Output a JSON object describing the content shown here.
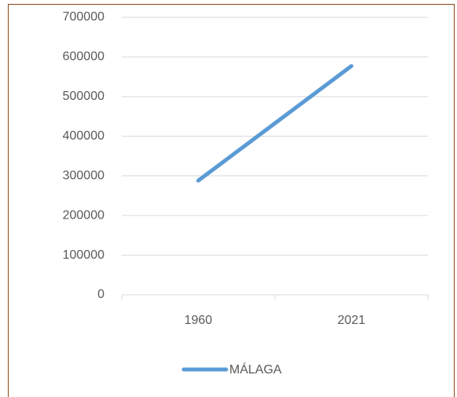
{
  "chart_data": {
    "type": "line",
    "categories": [
      "1960",
      "2021"
    ],
    "series": [
      {
        "name": "MÁLAGA",
        "color": "#5b9bd5",
        "values": [
          288000,
          577000
        ]
      }
    ],
    "ylim": [
      0,
      700000
    ],
    "yticks": [
      0,
      100000,
      200000,
      300000,
      400000,
      500000,
      600000,
      700000
    ],
    "grid": true,
    "legend": "bottom"
  }
}
